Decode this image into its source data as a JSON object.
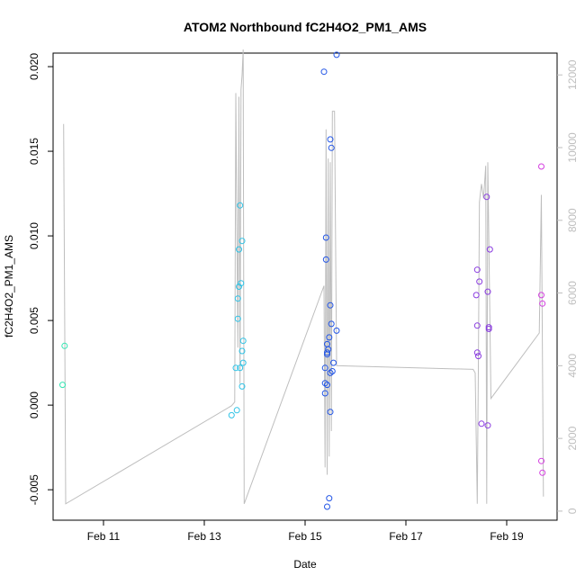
{
  "chart_data": {
    "type": "scatter",
    "title": "ATOM2 Northbound fC2H4O2_PM1_AMS",
    "xlabel": "Date",
    "ylabel": "fC2H4O2_PM1_AMS",
    "x_axis": {
      "type": "date",
      "ticks": [
        {
          "x": "2016-02-11",
          "label": "Feb 11"
        },
        {
          "x": "2016-02-13",
          "label": "Feb 13"
        },
        {
          "x": "2016-02-15",
          "label": "Feb 15"
        },
        {
          "x": "2016-02-17",
          "label": "Feb 17"
        },
        {
          "x": "2016-02-19",
          "label": "Feb 19"
        }
      ],
      "range": [
        "2016-02-10 00:00",
        "2016-02-20 00:00"
      ]
    },
    "y_axis": {
      "range": [
        -0.0068,
        0.0208
      ],
      "ticks": [
        -0.005,
        0.0,
        0.005,
        0.01,
        0.015,
        0.02
      ],
      "tick_labels": [
        "-0.005",
        "0.000",
        "0.005",
        "0.010",
        "0.015",
        "0.020"
      ]
    },
    "y2_axis": {
      "range": [
        -250,
        12600
      ],
      "ticks": [
        0,
        2000,
        4000,
        6000,
        8000,
        10000,
        12000
      ],
      "tick_labels": [
        "0",
        "2000",
        "4000",
        "6000",
        "8000",
        "10000",
        "12000"
      ],
      "color": "#bebebe"
    },
    "grid": false,
    "legend": "none",
    "colors": {
      "feb10": "#33e6b3",
      "feb13": "#2ec3e6",
      "feb15": "#2255e6",
      "feb18": "#8a3ce0",
      "feb19": "#d43ee0",
      "line": "#bebebe"
    },
    "series": [
      {
        "axis": "left",
        "color_key": "feb10",
        "points": [
          [
            "2016-02-10 04:30",
            0.0012
          ],
          [
            "2016-02-10 05:30",
            0.0035
          ]
        ]
      },
      {
        "axis": "left",
        "color_key": "feb13",
        "points": [
          [
            "2016-02-13 13:00",
            -0.0006
          ],
          [
            "2016-02-13 15:00",
            0.0022
          ],
          [
            "2016-02-13 15:30",
            -0.0003
          ],
          [
            "2016-02-13 16:00",
            0.0051
          ],
          [
            "2016-02-13 16:00",
            0.0063
          ],
          [
            "2016-02-13 16:30",
            0.007
          ],
          [
            "2016-02-13 16:30",
            0.0092
          ],
          [
            "2016-02-13 17:00",
            0.0118
          ],
          [
            "2016-02-13 17:00",
            0.0022
          ],
          [
            "2016-02-13 17:30",
            0.0072
          ],
          [
            "2016-02-13 18:00",
            0.0097
          ],
          [
            "2016-02-13 18:00",
            0.0032
          ],
          [
            "2016-02-13 18:00",
            0.0011
          ],
          [
            "2016-02-13 18:30",
            0.0038
          ],
          [
            "2016-02-13 18:30",
            0.0025
          ]
        ]
      },
      {
        "axis": "left",
        "color_key": "feb15",
        "points": [
          [
            "2016-02-15 09:00",
            0.0197
          ],
          [
            "2016-02-15 09:30",
            0.0022
          ],
          [
            "2016-02-15 09:30",
            0.0013
          ],
          [
            "2016-02-15 09:30",
            0.0007
          ],
          [
            "2016-02-15 10:00",
            0.0099
          ],
          [
            "2016-02-15 10:00",
            0.0086
          ],
          [
            "2016-02-15 10:30",
            0.0036
          ],
          [
            "2016-02-15 10:30",
            0.0031
          ],
          [
            "2016-02-15 10:30",
            0.003
          ],
          [
            "2016-02-15 10:30",
            0.0012
          ],
          [
            "2016-02-15 10:30",
            -0.006
          ],
          [
            "2016-02-15 11:00",
            0.0033
          ],
          [
            "2016-02-15 11:30",
            -0.0055
          ],
          [
            "2016-02-15 11:30",
            0.004
          ],
          [
            "2016-02-15 12:00",
            0.0157
          ],
          [
            "2016-02-15 12:00",
            0.0059
          ],
          [
            "2016-02-15 12:00",
            0.0019
          ],
          [
            "2016-02-15 12:00",
            -0.0004
          ],
          [
            "2016-02-15 12:30",
            0.0152
          ],
          [
            "2016-02-15 12:30",
            0.0048
          ],
          [
            "2016-02-15 13:00",
            0.002
          ],
          [
            "2016-02-15 13:30",
            0.0025
          ],
          [
            "2016-02-15 15:00",
            0.0207
          ],
          [
            "2016-02-15 15:00",
            0.0044
          ]
        ]
      },
      {
        "axis": "left",
        "color_key": "feb18",
        "points": [
          [
            "2016-02-18 09:30",
            0.0065
          ],
          [
            "2016-02-18 10:00",
            0.008
          ],
          [
            "2016-02-18 10:00",
            0.0047
          ],
          [
            "2016-02-18 10:00",
            0.0031
          ],
          [
            "2016-02-18 10:30",
            0.0029
          ],
          [
            "2016-02-18 11:00",
            0.0073
          ],
          [
            "2016-02-18 12:00",
            -0.0011
          ],
          [
            "2016-02-18 14:30",
            0.0123
          ],
          [
            "2016-02-18 15:00",
            0.0067
          ],
          [
            "2016-02-18 15:00",
            -0.0012
          ],
          [
            "2016-02-18 15:30",
            0.0046
          ],
          [
            "2016-02-18 15:30",
            0.0045
          ],
          [
            "2016-02-18 16:00",
            0.0092
          ]
        ]
      },
      {
        "axis": "left",
        "color_key": "feb19",
        "points": [
          [
            "2016-02-19 16:30",
            0.0141
          ],
          [
            "2016-02-19 16:30",
            0.0065
          ],
          [
            "2016-02-19 16:30",
            -0.0033
          ],
          [
            "2016-02-19 17:00",
            -0.004
          ],
          [
            "2016-02-19 17:00",
            0.006
          ]
        ]
      },
      {
        "axis": "right",
        "style": "line",
        "color_key": "line",
        "points": [
          [
            "2016-02-10 05:00",
            10650
          ],
          [
            "2016-02-10 06:00",
            200
          ],
          [
            "2016-02-13 13:00",
            2900
          ],
          [
            "2016-02-13 14:30",
            3000
          ],
          [
            "2016-02-13 15:00",
            11500
          ],
          [
            "2016-02-13 16:00",
            4500
          ],
          [
            "2016-02-13 16:30",
            11400
          ],
          [
            "2016-02-13 17:00",
            3500
          ],
          [
            "2016-02-13 17:30",
            11600
          ],
          [
            "2016-02-13 18:00",
            12000
          ],
          [
            "2016-02-13 18:30",
            12700
          ],
          [
            "2016-02-13 19:00",
            200
          ],
          [
            "2016-02-15 09:00",
            6200
          ],
          [
            "2016-02-15 09:30",
            1200
          ],
          [
            "2016-02-15 10:00",
            10500
          ],
          [
            "2016-02-15 10:30",
            1000
          ],
          [
            "2016-02-15 11:00",
            9700
          ],
          [
            "2016-02-15 11:30",
            1500
          ],
          [
            "2016-02-15 12:00",
            9600
          ],
          [
            "2016-02-15 12:30",
            2200
          ],
          [
            "2016-02-15 13:00",
            11000
          ],
          [
            "2016-02-15 14:00",
            11000
          ],
          [
            "2016-02-15 15:00",
            4000
          ],
          [
            "2016-02-18 08:00",
            3900
          ],
          [
            "2016-02-18 09:00",
            3800
          ],
          [
            "2016-02-18 10:00",
            200
          ],
          [
            "2016-02-18 10:30",
            3900
          ],
          [
            "2016-02-18 11:00",
            8500
          ],
          [
            "2016-02-18 12:00",
            9000
          ],
          [
            "2016-02-18 13:00",
            8600
          ],
          [
            "2016-02-18 14:00",
            9500
          ],
          [
            "2016-02-18 14:30",
            200
          ],
          [
            "2016-02-18 15:00",
            9600
          ],
          [
            "2016-02-18 16:30",
            3100
          ],
          [
            "2016-02-19 15:30",
            4900
          ],
          [
            "2016-02-19 16:30",
            8700
          ],
          [
            "2016-02-19 17:30",
            400
          ]
        ]
      }
    ]
  }
}
